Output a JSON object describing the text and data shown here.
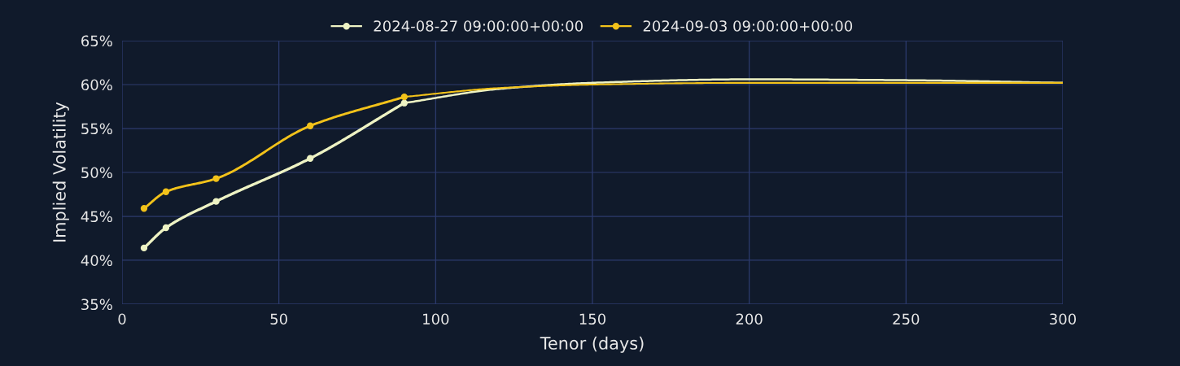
{
  "chart_data": {
    "type": "line",
    "xlabel": "Tenor (days)",
    "ylabel": "Implied Volatility",
    "xlim": [
      0,
      300
    ],
    "xticks": [
      0,
      50,
      100,
      150,
      200,
      250,
      300
    ],
    "ylim": [
      35,
      65
    ],
    "yticks": [
      {
        "value": 35,
        "label": "35%"
      },
      {
        "value": 40,
        "label": "40%"
      },
      {
        "value": 45,
        "label": "45%"
      },
      {
        "value": 50,
        "label": "50%"
      },
      {
        "value": 55,
        "label": "55%"
      },
      {
        "value": 60,
        "label": "60%"
      },
      {
        "value": 65,
        "label": "65%"
      }
    ],
    "grid": true,
    "legend": "top",
    "marker": "circle",
    "series": [
      {
        "name": "2024-08-27 09:00:00+00:00",
        "color": "#eef3c4",
        "x": [
          7,
          14,
          30,
          60,
          90
        ],
        "values": [
          41.4,
          43.7,
          46.7,
          51.6,
          57.9
        ]
      },
      {
        "name": "2024-09-03 09:00:00+00:00",
        "color": "#f2c21a",
        "x": [
          7,
          14,
          30,
          60,
          90
        ],
        "values": [
          45.9,
          47.8,
          49.3,
          55.3,
          58.6
        ]
      },
      {
        "color": "#eef3c4",
        "marker": "none",
        "x": [
          90,
          120,
          150,
          200,
          250,
          300
        ],
        "values": [
          57.9,
          59.5,
          60.2,
          60.6,
          60.5,
          60.2
        ]
      },
      {
        "color": "#f2c21a",
        "marker": "none",
        "x": [
          90,
          120,
          150,
          200,
          250,
          300
        ],
        "values": [
          58.6,
          59.6,
          60.0,
          60.2,
          60.2,
          60.2
        ]
      }
    ]
  }
}
